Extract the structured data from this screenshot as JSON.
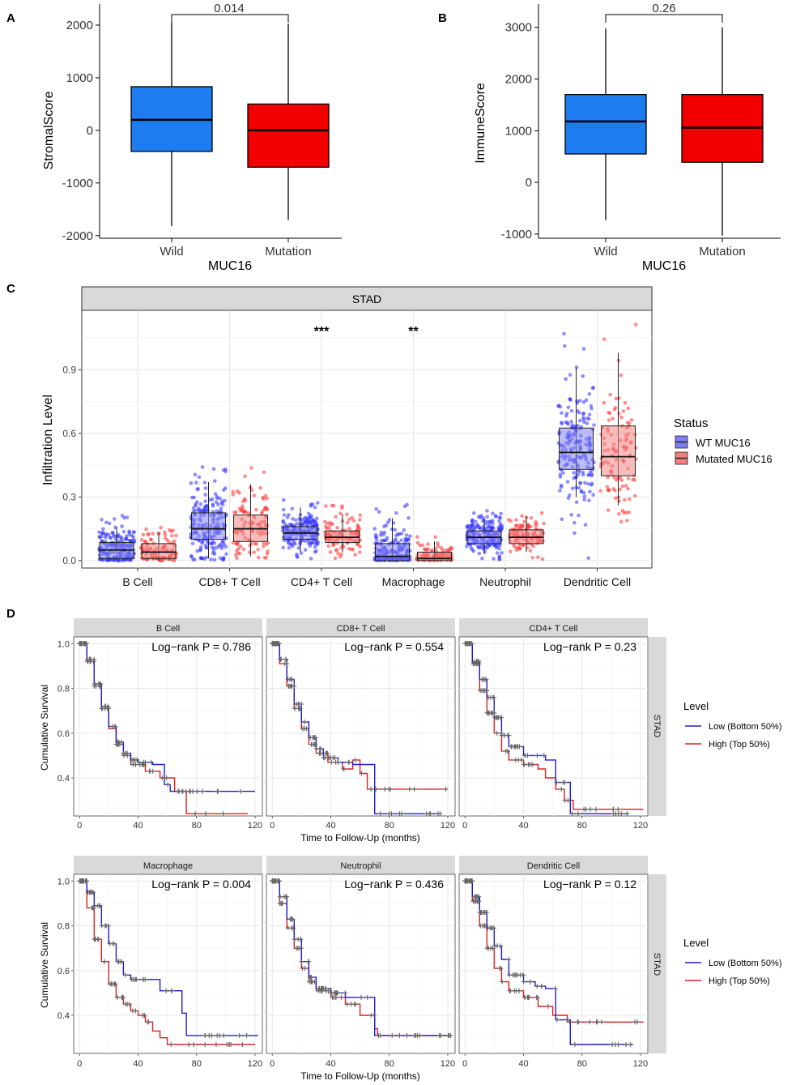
{
  "colors": {
    "wild_fill": "#1C7CF0",
    "mutation_fill": "#F20000",
    "wt_points": "#3333FF",
    "mut_points": "#FF3333",
    "wt_box": "#8585F0",
    "mut_box": "#F08585",
    "km_low": "#1F1FCC",
    "km_high": "#E02020",
    "censor": "#666666",
    "strip_bg": "#D9D9D9",
    "grid": "#EBEBEB"
  },
  "chart_data": [
    {
      "id": "A",
      "type": "box",
      "panel_label": "A",
      "ylabel": "StromalScore",
      "xtitle": "MUC16",
      "categories": [
        "Wild",
        "Mutation"
      ],
      "ylim": [
        -2050,
        2400
      ],
      "yticks": [
        -2000,
        -1000,
        0,
        1000,
        2000
      ],
      "boxes": [
        {
          "name": "Wild",
          "min": -1820,
          "q1": -400,
          "median": 200,
          "q3": 830,
          "max": 2050
        },
        {
          "name": "Mutation",
          "min": -1700,
          "q1": -700,
          "median": 0,
          "q3": 500,
          "max": 2020
        }
      ],
      "bracket_label": "0.014"
    },
    {
      "id": "B",
      "type": "box",
      "panel_label": "B",
      "ylabel": "ImmuneScore",
      "xtitle": "MUC16",
      "categories": [
        "Wild",
        "Mutation"
      ],
      "ylim": [
        -1080,
        3450
      ],
      "yticks": [
        -1000,
        0,
        1000,
        2000,
        3000
      ],
      "boxes": [
        {
          "name": "Wild",
          "min": -730,
          "q1": 550,
          "median": 1180,
          "q3": 1700,
          "max": 2980
        },
        {
          "name": "Mutation",
          "min": -1030,
          "q1": 390,
          "median": 1060,
          "q3": 1700,
          "max": 3000
        }
      ],
      "bracket_label": "0.26"
    },
    {
      "id": "C",
      "type": "box_jitter",
      "panel_label": "C",
      "strip": "STAD",
      "ylabel": "Infiltration Level",
      "ylim": [
        -0.035,
        1.18
      ],
      "yticks": [
        0.0,
        0.3,
        0.6,
        0.9
      ],
      "ytick_labels": [
        "0.0",
        "0.3",
        "0.6",
        "0.9"
      ],
      "categories": [
        "B Cell",
        "CD8+ T Cell",
        "CD4+ T Cell",
        "Macrophage",
        "Neutrophil",
        "Dendritic Cell"
      ],
      "significance": [
        "",
        "",
        "***",
        "**",
        "",
        ""
      ],
      "legend_title": "Status",
      "series": [
        {
          "name": "WT MUC16",
          "boxes": [
            {
              "min": 0.0,
              "q1": 0.01,
              "median": 0.05,
              "q3": 0.085,
              "max": 0.16
            },
            {
              "min": 0.01,
              "q1": 0.1,
              "median": 0.15,
              "q3": 0.225,
              "max": 0.37
            },
            {
              "min": 0.04,
              "q1": 0.1,
              "median": 0.13,
              "q3": 0.16,
              "max": 0.25
            },
            {
              "min": 0.0,
              "q1": 0.0,
              "median": 0.02,
              "q3": 0.08,
              "max": 0.2
            },
            {
              "min": 0.03,
              "q1": 0.08,
              "median": 0.11,
              "q3": 0.14,
              "max": 0.2
            },
            {
              "min": 0.3,
              "q1": 0.43,
              "median": 0.51,
              "q3": 0.625,
              "max": 0.91
            }
          ]
        },
        {
          "name": "Mutated MUC16",
          "boxes": [
            {
              "min": 0.0,
              "q1": 0.01,
              "median": 0.04,
              "q3": 0.08,
              "max": 0.13
            },
            {
              "min": 0.02,
              "q1": 0.09,
              "median": 0.15,
              "q3": 0.215,
              "max": 0.36
            },
            {
              "min": 0.04,
              "q1": 0.085,
              "median": 0.11,
              "q3": 0.14,
              "max": 0.22
            },
            {
              "min": 0.0,
              "q1": 0.0,
              "median": 0.01,
              "q3": 0.04,
              "max": 0.09
            },
            {
              "min": 0.04,
              "q1": 0.08,
              "median": 0.11,
              "q3": 0.145,
              "max": 0.21
            },
            {
              "min": 0.26,
              "q1": 0.4,
              "median": 0.49,
              "q3": 0.635,
              "max": 0.98
            }
          ]
        }
      ]
    },
    {
      "id": "D",
      "type": "km_survival",
      "panel_label": "D",
      "xlabel": "Time to Follow-Up (months)",
      "ylabel": "Cumulative Survival",
      "xticks": [
        0,
        40,
        80,
        120
      ],
      "xlim": [
        -4,
        125
      ],
      "ylim": [
        0.23,
        1.03
      ],
      "yticks": [
        0.4,
        0.6,
        0.8,
        1.0
      ],
      "ytick_labels": [
        "0.4",
        "0.6",
        "0.8",
        "1.0"
      ],
      "row_strip": "STAD",
      "legend_title": "Level",
      "legend": [
        "Low (Bottom 50%)",
        "High (Top 50%)"
      ],
      "panels": [
        {
          "title": "B Cell",
          "pvalue": "Log−rank P = 0.786",
          "low": [
            [
              0,
              1.0
            ],
            [
              5,
              0.93
            ],
            [
              10,
              0.82
            ],
            [
              15,
              0.72
            ],
            [
              20,
              0.63
            ],
            [
              25,
              0.56
            ],
            [
              30,
              0.51
            ],
            [
              35,
              0.48
            ],
            [
              40,
              0.47
            ],
            [
              50,
              0.46
            ],
            [
              58,
              0.46
            ],
            [
              58,
              0.37
            ],
            [
              62,
              0.34
            ],
            [
              120,
              0.34
            ]
          ],
          "high": [
            [
              0,
              1.0
            ],
            [
              5,
              0.92
            ],
            [
              10,
              0.81
            ],
            [
              15,
              0.71
            ],
            [
              20,
              0.62
            ],
            [
              25,
              0.55
            ],
            [
              30,
              0.5
            ],
            [
              35,
              0.46
            ],
            [
              45,
              0.43
            ],
            [
              55,
              0.4
            ],
            [
              65,
              0.34
            ],
            [
              73,
              0.34
            ],
            [
              73,
              0.24
            ],
            [
              115,
              0.24
            ]
          ]
        },
        {
          "title": "CD8+ T Cell",
          "pvalue": "Log−rank P = 0.554",
          "low": [
            [
              0,
              1.0
            ],
            [
              5,
              0.93
            ],
            [
              10,
              0.84
            ],
            [
              15,
              0.73
            ],
            [
              20,
              0.65
            ],
            [
              25,
              0.58
            ],
            [
              30,
              0.53
            ],
            [
              35,
              0.49
            ],
            [
              45,
              0.47
            ],
            [
              55,
              0.46
            ],
            [
              70,
              0.46
            ],
            [
              70,
              0.24
            ],
            [
              115,
              0.24
            ]
          ],
          "high": [
            [
              0,
              1.0
            ],
            [
              5,
              0.91
            ],
            [
              10,
              0.81
            ],
            [
              15,
              0.71
            ],
            [
              20,
              0.62
            ],
            [
              25,
              0.55
            ],
            [
              30,
              0.51
            ],
            [
              38,
              0.47
            ],
            [
              48,
              0.44
            ],
            [
              55,
              0.48
            ],
            [
              60,
              0.42
            ],
            [
              65,
              0.35
            ],
            [
              120,
              0.35
            ]
          ]
        },
        {
          "title": "CD4+ T Cell",
          "pvalue": "Log−rank P = 0.23",
          "low": [
            [
              0,
              1.0
            ],
            [
              5,
              0.92
            ],
            [
              10,
              0.84
            ],
            [
              15,
              0.76
            ],
            [
              20,
              0.67
            ],
            [
              25,
              0.59
            ],
            [
              30,
              0.54
            ],
            [
              40,
              0.5
            ],
            [
              55,
              0.48
            ],
            [
              62,
              0.48
            ],
            [
              62,
              0.38
            ],
            [
              72,
              0.38
            ],
            [
              72,
              0.24
            ],
            [
              112,
              0.24
            ]
          ],
          "high": [
            [
              0,
              1.0
            ],
            [
              5,
              0.91
            ],
            [
              10,
              0.79
            ],
            [
              15,
              0.69
            ],
            [
              20,
              0.6
            ],
            [
              25,
              0.52
            ],
            [
              30,
              0.48
            ],
            [
              40,
              0.46
            ],
            [
              50,
              0.44
            ],
            [
              55,
              0.4
            ],
            [
              62,
              0.35
            ],
            [
              68,
              0.3
            ],
            [
              74,
              0.26
            ],
            [
              122,
              0.26
            ]
          ]
        },
        {
          "title": "Macrophage",
          "pvalue": "Log−rank P = 0.004",
          "low": [
            [
              0,
              1.0
            ],
            [
              5,
              0.95
            ],
            [
              10,
              0.89
            ],
            [
              15,
              0.8
            ],
            [
              20,
              0.72
            ],
            [
              25,
              0.64
            ],
            [
              30,
              0.58
            ],
            [
              35,
              0.56
            ],
            [
              55,
              0.56
            ],
            [
              55,
              0.51
            ],
            [
              70,
              0.51
            ],
            [
              70,
              0.41
            ],
            [
              73,
              0.41
            ],
            [
              73,
              0.31
            ],
            [
              122,
              0.31
            ]
          ],
          "high": [
            [
              0,
              1.0
            ],
            [
              5,
              0.88
            ],
            [
              10,
              0.74
            ],
            [
              15,
              0.64
            ],
            [
              20,
              0.54
            ],
            [
              25,
              0.48
            ],
            [
              30,
              0.45
            ],
            [
              35,
              0.42
            ],
            [
              40,
              0.4
            ],
            [
              45,
              0.37
            ],
            [
              50,
              0.33
            ],
            [
              55,
              0.3
            ],
            [
              60,
              0.27
            ],
            [
              120,
              0.27
            ]
          ]
        },
        {
          "title": "Neutrophil",
          "pvalue": "Log−rank P = 0.436",
          "low": [
            [
              0,
              1.0
            ],
            [
              5,
              0.93
            ],
            [
              10,
              0.83
            ],
            [
              15,
              0.74
            ],
            [
              20,
              0.64
            ],
            [
              25,
              0.57
            ],
            [
              30,
              0.52
            ],
            [
              40,
              0.5
            ],
            [
              50,
              0.48
            ],
            [
              70,
              0.48
            ],
            [
              70,
              0.31
            ],
            [
              122,
              0.31
            ]
          ],
          "high": [
            [
              0,
              1.0
            ],
            [
              5,
              0.9
            ],
            [
              10,
              0.79
            ],
            [
              15,
              0.7
            ],
            [
              20,
              0.61
            ],
            [
              25,
              0.55
            ],
            [
              30,
              0.51
            ],
            [
              40,
              0.48
            ],
            [
              50,
              0.45
            ],
            [
              60,
              0.4
            ],
            [
              70,
              0.34
            ],
            [
              72,
              0.31
            ],
            [
              120,
              0.31
            ]
          ]
        },
        {
          "title": "Dendritic Cell",
          "pvalue": "Log−rank P = 0.12",
          "low": [
            [
              0,
              1.0
            ],
            [
              5,
              0.93
            ],
            [
              10,
              0.86
            ],
            [
              15,
              0.79
            ],
            [
              20,
              0.71
            ],
            [
              25,
              0.65
            ],
            [
              30,
              0.58
            ],
            [
              40,
              0.55
            ],
            [
              48,
              0.53
            ],
            [
              55,
              0.52
            ],
            [
              62,
              0.52
            ],
            [
              62,
              0.38
            ],
            [
              72,
              0.38
            ],
            [
              72,
              0.27
            ],
            [
              115,
              0.27
            ]
          ],
          "high": [
            [
              0,
              1.0
            ],
            [
              5,
              0.91
            ],
            [
              10,
              0.8
            ],
            [
              15,
              0.7
            ],
            [
              20,
              0.61
            ],
            [
              25,
              0.55
            ],
            [
              30,
              0.51
            ],
            [
              40,
              0.48
            ],
            [
              50,
              0.44
            ],
            [
              60,
              0.4
            ],
            [
              70,
              0.37
            ],
            [
              80,
              0.37
            ],
            [
              122,
              0.37
            ]
          ]
        }
      ]
    }
  ]
}
